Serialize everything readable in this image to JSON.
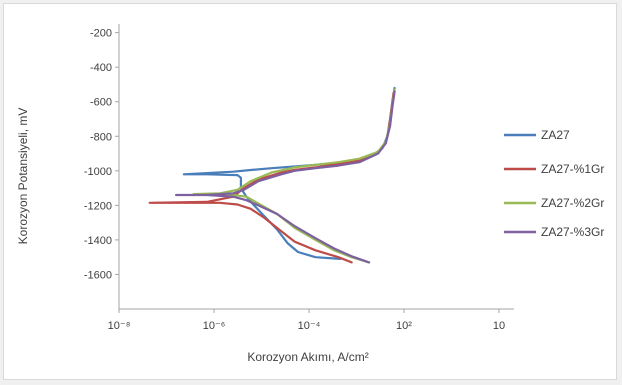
{
  "chart_data": {
    "type": "line",
    "xlabel": "Korozyon Akımı, A/cm²",
    "ylabel": "Korozyon Potansiyeli, mV",
    "x_scale": "log",
    "xlim": [
      1e-08,
      10
    ],
    "ylim": [
      -1800,
      -150
    ],
    "x_tick_labels": [
      "10⁻⁸",
      "10⁻⁶",
      "10⁻⁴",
      "10²",
      "10"
    ],
    "y_ticks": [
      -200,
      -400,
      -600,
      -800,
      -1000,
      -1200,
      -1400,
      -1600
    ],
    "grid": false,
    "legend_position": "right",
    "series": [
      {
        "name": "ZA27",
        "color": "#4a7ebb",
        "x": [
          0.0011,
          0.0003,
          0.00012,
          7e-05,
          4e-05,
          2e-05,
          1.2e-05,
          8e-06,
          6e-06,
          6e-06,
          5e-06,
          1e-06,
          3e-07,
          4e-06,
          1e-05,
          3e-05,
          0.0001,
          0.0003,
          0.001,
          0.003,
          0.006,
          0.01,
          0.013,
          0.015,
          0.017,
          0.019
        ],
        "y": [
          -1510,
          -1500,
          -1470,
          -1420,
          -1340,
          -1260,
          -1200,
          -1150,
          -1100,
          -1040,
          -1025,
          -1020,
          -1020,
          -1005,
          -995,
          -985,
          -975,
          -965,
          -955,
          -940,
          -910,
          -870,
          -800,
          -700,
          -600,
          -520
        ]
      },
      {
        "name": "ZA27-%1Gr",
        "color": "#be4b48",
        "x": [
          0.002,
          0.001,
          0.0003,
          0.0001,
          5e-05,
          2e-05,
          1e-05,
          5e-06,
          2e-06,
          1e-06,
          3e-07,
          1e-07,
          5e-08,
          1e-06,
          4e-06,
          7e-06,
          1.5e-05,
          5e-05,
          0.0001,
          0.0003,
          0.001,
          0.003,
          0.008,
          0.012,
          0.014,
          0.016,
          0.018
        ],
        "y": [
          -1530,
          -1500,
          -1460,
          -1410,
          -1350,
          -1270,
          -1220,
          -1195,
          -1185,
          -1185,
          -1185,
          -1185,
          -1185,
          -1180,
          -1150,
          -1100,
          -1050,
          -1010,
          -995,
          -980,
          -960,
          -940,
          -890,
          -840,
          -760,
          -650,
          -550
        ]
      },
      {
        "name": "ZA27-%2Gr",
        "color": "#98b954",
        "x": [
          0.005,
          0.002,
          0.0008,
          0.0003,
          0.0001,
          4e-05,
          1.5e-05,
          8e-06,
          4e-06,
          1e-06,
          5e-07,
          2e-06,
          5e-06,
          1e-05,
          3e-05,
          0.0001,
          0.0003,
          0.001,
          0.003,
          0.008,
          0.012,
          0.015,
          0.017,
          0.019
        ],
        "y": [
          -1530,
          -1500,
          -1460,
          -1400,
          -1330,
          -1250,
          -1190,
          -1150,
          -1140,
          -1135,
          -1135,
          -1130,
          -1110,
          -1060,
          -1010,
          -980,
          -965,
          -950,
          -930,
          -890,
          -830,
          -730,
          -620,
          -530
        ]
      },
      {
        "name": "ZA27-%3Gr",
        "color": "#7d60a0",
        "x": [
          0.005,
          0.002,
          0.0008,
          0.0003,
          0.0001,
          4e-05,
          1.5e-05,
          8e-06,
          4e-06,
          1e-06,
          2e-07,
          1e-06,
          4e-06,
          7e-06,
          1.5e-05,
          5e-05,
          0.0001,
          0.0003,
          0.001,
          0.003,
          0.008,
          0.012,
          0.015,
          0.017,
          0.019
        ],
        "y": [
          -1530,
          -1495,
          -1450,
          -1390,
          -1320,
          -1250,
          -1200,
          -1170,
          -1150,
          -1140,
          -1140,
          -1140,
          -1130,
          -1110,
          -1060,
          -1020,
          -1000,
          -985,
          -970,
          -950,
          -900,
          -840,
          -740,
          -630,
          -540
        ]
      }
    ]
  }
}
